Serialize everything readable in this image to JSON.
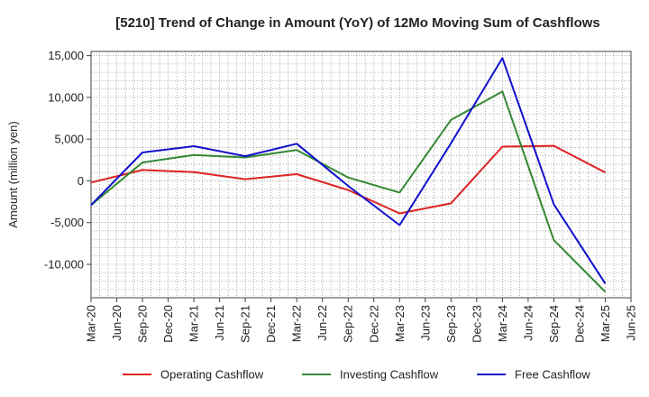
{
  "chart_data": {
    "type": "line",
    "title": "[5210]  Trend of Change in Amount (YoY) of 12Mo Moving Sum of Cashflows",
    "xlabel": "",
    "ylabel": "Amount (million yen)",
    "ylim": [
      -14000,
      15500
    ],
    "yticks": [
      15000,
      10000,
      5000,
      0,
      -5000,
      -10000
    ],
    "ytick_labels": [
      "15,000",
      "10,000",
      "5,000",
      "0",
      "-5,000",
      "-10,000"
    ],
    "x_labels": [
      "Mar-20",
      "Jun-20",
      "Sep-20",
      "Dec-20",
      "Mar-21",
      "Jun-21",
      "Sep-21",
      "Dec-21",
      "Mar-22",
      "Jun-22",
      "Sep-22",
      "Dec-22",
      "Mar-23",
      "Jun-23",
      "Sep-23",
      "Dec-23",
      "Mar-24",
      "Jun-24",
      "Sep-24",
      "Dec-24",
      "Mar-25",
      "Jun-25"
    ],
    "grid": true,
    "legend_position": "bottom",
    "series": [
      {
        "name": "Operating Cashflow",
        "color": "#dd2222",
        "points": [
          [
            0,
            -200
          ],
          [
            2,
            1300
          ],
          [
            4,
            1050
          ],
          [
            6,
            200
          ],
          [
            8,
            800
          ],
          [
            10,
            -1100
          ],
          [
            12,
            -3900
          ],
          [
            14,
            -2700
          ],
          [
            16,
            4100
          ],
          [
            18,
            4200
          ],
          [
            20,
            1000
          ]
        ]
      },
      {
        "name": "Investing Cashflow",
        "color": "#338833",
        "points": [
          [
            0,
            -2900
          ],
          [
            2,
            2200
          ],
          [
            4,
            3100
          ],
          [
            6,
            2800
          ],
          [
            8,
            3700
          ],
          [
            10,
            400
          ],
          [
            12,
            -1400
          ],
          [
            14,
            7300
          ],
          [
            16,
            10700
          ],
          [
            18,
            -7100
          ],
          [
            20,
            -13300
          ]
        ]
      },
      {
        "name": "Free Cashflow",
        "color": "#1111cc",
        "points": [
          [
            0,
            -2900
          ],
          [
            2,
            3400
          ],
          [
            4,
            4150
          ],
          [
            6,
            2950
          ],
          [
            8,
            4450
          ],
          [
            10,
            -600
          ],
          [
            12,
            -5300
          ],
          [
            14,
            4500
          ],
          [
            16,
            14700
          ],
          [
            18,
            -2800
          ],
          [
            20,
            -12300
          ]
        ]
      }
    ]
  }
}
